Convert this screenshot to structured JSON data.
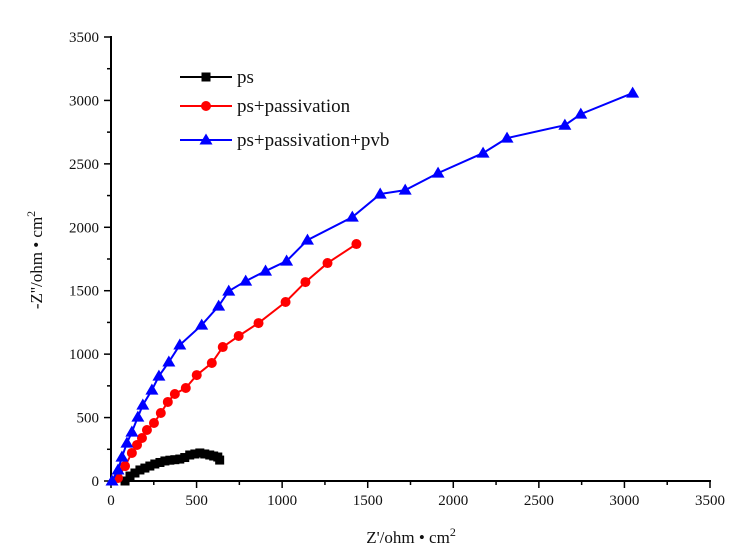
{
  "chart_data": {
    "type": "scatter",
    "title": "",
    "xlabel": "Z'/ohm • cm",
    "xlabel_sup": "2",
    "ylabel": "-Z''/ohm • cm",
    "ylabel_sup": "2",
    "xlim": [
      0,
      3500
    ],
    "ylim": [
      0,
      3500
    ],
    "xticks": [
      0,
      500,
      1000,
      1500,
      2000,
      2500,
      3000,
      3500
    ],
    "yticks": [
      0,
      500,
      1000,
      1500,
      2000,
      2500,
      3000,
      3500
    ],
    "xtick_labels": [
      "0",
      "500",
      "1000",
      "1500",
      "2000",
      "2500",
      "3000",
      "3500"
    ],
    "ytick_labels": [
      "0",
      "500",
      "1000",
      "1500",
      "2000",
      "2500",
      "3000",
      "3500"
    ],
    "grid": false,
    "legend_position": "top-left",
    "series": [
      {
        "name": "ps",
        "color": "#000000",
        "marker": "square",
        "x": [
          82,
          111,
          140,
          169,
          198,
          227,
          256,
          286,
          315,
          344,
          373,
          402,
          431,
          460,
          490,
          519,
          548,
          577,
          600,
          624,
          635
        ],
        "y": [
          0,
          39,
          63,
          87,
          102,
          118,
          134,
          146,
          158,
          164,
          168,
          173,
          185,
          205,
          213,
          221,
          213,
          205,
          197,
          189,
          165
        ]
      },
      {
        "name": "ps+passivation",
        "color": "#ff0000",
        "marker": "circle",
        "x": [
          41,
          82,
          122,
          152,
          181,
          210,
          251,
          291,
          332,
          373,
          437,
          501,
          589,
          653,
          746,
          862,
          1020,
          1136,
          1265,
          1434
        ],
        "y": [
          24,
          118,
          221,
          284,
          339,
          402,
          457,
          536,
          623,
          686,
          733,
          835,
          930,
          1056,
          1143,
          1245,
          1411,
          1568,
          1718,
          1868
        ]
      },
      {
        "name": "ps+passivation+pvb",
        "color": "#0000ff",
        "marker": "triangle",
        "x": [
          6,
          41,
          64,
          93,
          122,
          157,
          186,
          239,
          280,
          338,
          402,
          530,
          629,
          688,
          787,
          903,
          1026,
          1148,
          1410,
          1573,
          1719,
          1911,
          2174,
          2314,
          2652,
          2745,
          3048
        ],
        "y": [
          0,
          87,
          189,
          299,
          386,
          504,
          599,
          717,
          827,
          938,
          1072,
          1229,
          1379,
          1497,
          1576,
          1655,
          1734,
          1899,
          2080,
          2262,
          2293,
          2427,
          2585,
          2703,
          2805,
          2892,
          3058
        ]
      }
    ]
  }
}
